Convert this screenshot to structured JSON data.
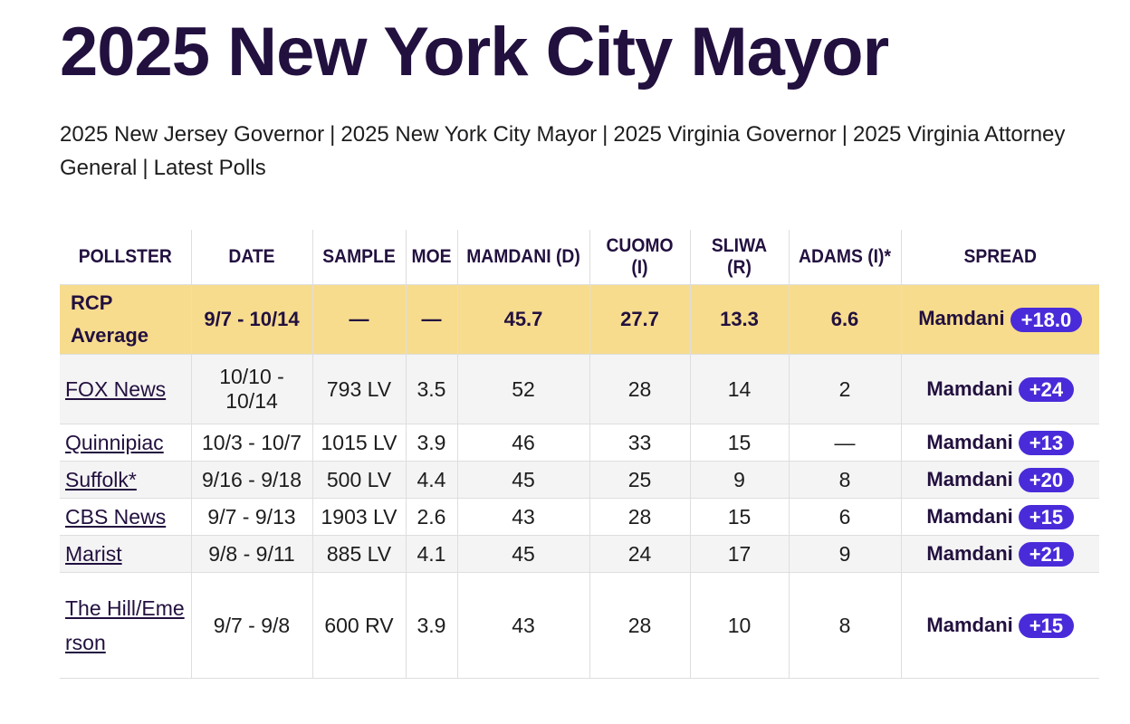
{
  "page_title": "2025 New York City Mayor",
  "race_nav": [
    "2025 New Jersey Governor",
    "2025 New York City Mayor",
    "2025 Virginia Governor",
    "2025 Virginia Attorney General",
    "Latest Polls"
  ],
  "columns": [
    "POLLSTER",
    "DATE",
    "SAMPLE",
    "MOE",
    "MAMDANI (D)",
    "CUOMO (I)",
    "SLIWA (R)",
    "ADAMS (I)*",
    "SPREAD"
  ],
  "average": {
    "pollster": "RCP Average",
    "date": "9/7 - 10/14",
    "sample": "—",
    "moe": "—",
    "mamdani": "45.7",
    "cuomo": "27.7",
    "sliwa": "13.3",
    "adams": "6.6",
    "spread_leader": "Mamdani",
    "spread_value": "+18.0"
  },
  "polls": [
    {
      "pollster": "FOX News",
      "date": "10/10 - 10/14",
      "sample": "793 LV",
      "moe": "3.5",
      "mamdani": "52",
      "cuomo": "28",
      "sliwa": "14",
      "adams": "2",
      "spread_leader": "Mamdani",
      "spread_value": "+24"
    },
    {
      "pollster": "Quinnipiac",
      "date": "10/3 - 10/7",
      "sample": "1015 LV",
      "moe": "3.9",
      "mamdani": "46",
      "cuomo": "33",
      "sliwa": "15",
      "adams": "—",
      "spread_leader": "Mamdani",
      "spread_value": "+13"
    },
    {
      "pollster": "Suffolk*",
      "date": "9/16 - 9/18",
      "sample": "500 LV",
      "moe": "4.4",
      "mamdani": "45",
      "cuomo": "25",
      "sliwa": "9",
      "adams": "8",
      "spread_leader": "Mamdani",
      "spread_value": "+20"
    },
    {
      "pollster": "CBS News",
      "date": "9/7 - 9/13",
      "sample": "1903 LV",
      "moe": "2.6",
      "mamdani": "43",
      "cuomo": "28",
      "sliwa": "15",
      "adams": "6",
      "spread_leader": "Mamdani",
      "spread_value": "+15"
    },
    {
      "pollster": "Marist",
      "date": "9/8 - 9/11",
      "sample": "885 LV",
      "moe": "4.1",
      "mamdani": "45",
      "cuomo": "24",
      "sliwa": "17",
      "adams": "9",
      "spread_leader": "Mamdani",
      "spread_value": "+21"
    },
    {
      "pollster": "The Hill/Emerson",
      "date": "9/7 - 9/8",
      "sample": "600 RV",
      "moe": "3.9",
      "mamdani": "43",
      "cuomo": "28",
      "sliwa": "10",
      "adams": "8",
      "spread_leader": "Mamdani",
      "spread_value": "+15"
    }
  ],
  "colors": {
    "title": "#22103f",
    "average_row": "#f7dc8e",
    "spread_pill": "#4a2bd9",
    "shaded_row": "#f4f4f4"
  }
}
